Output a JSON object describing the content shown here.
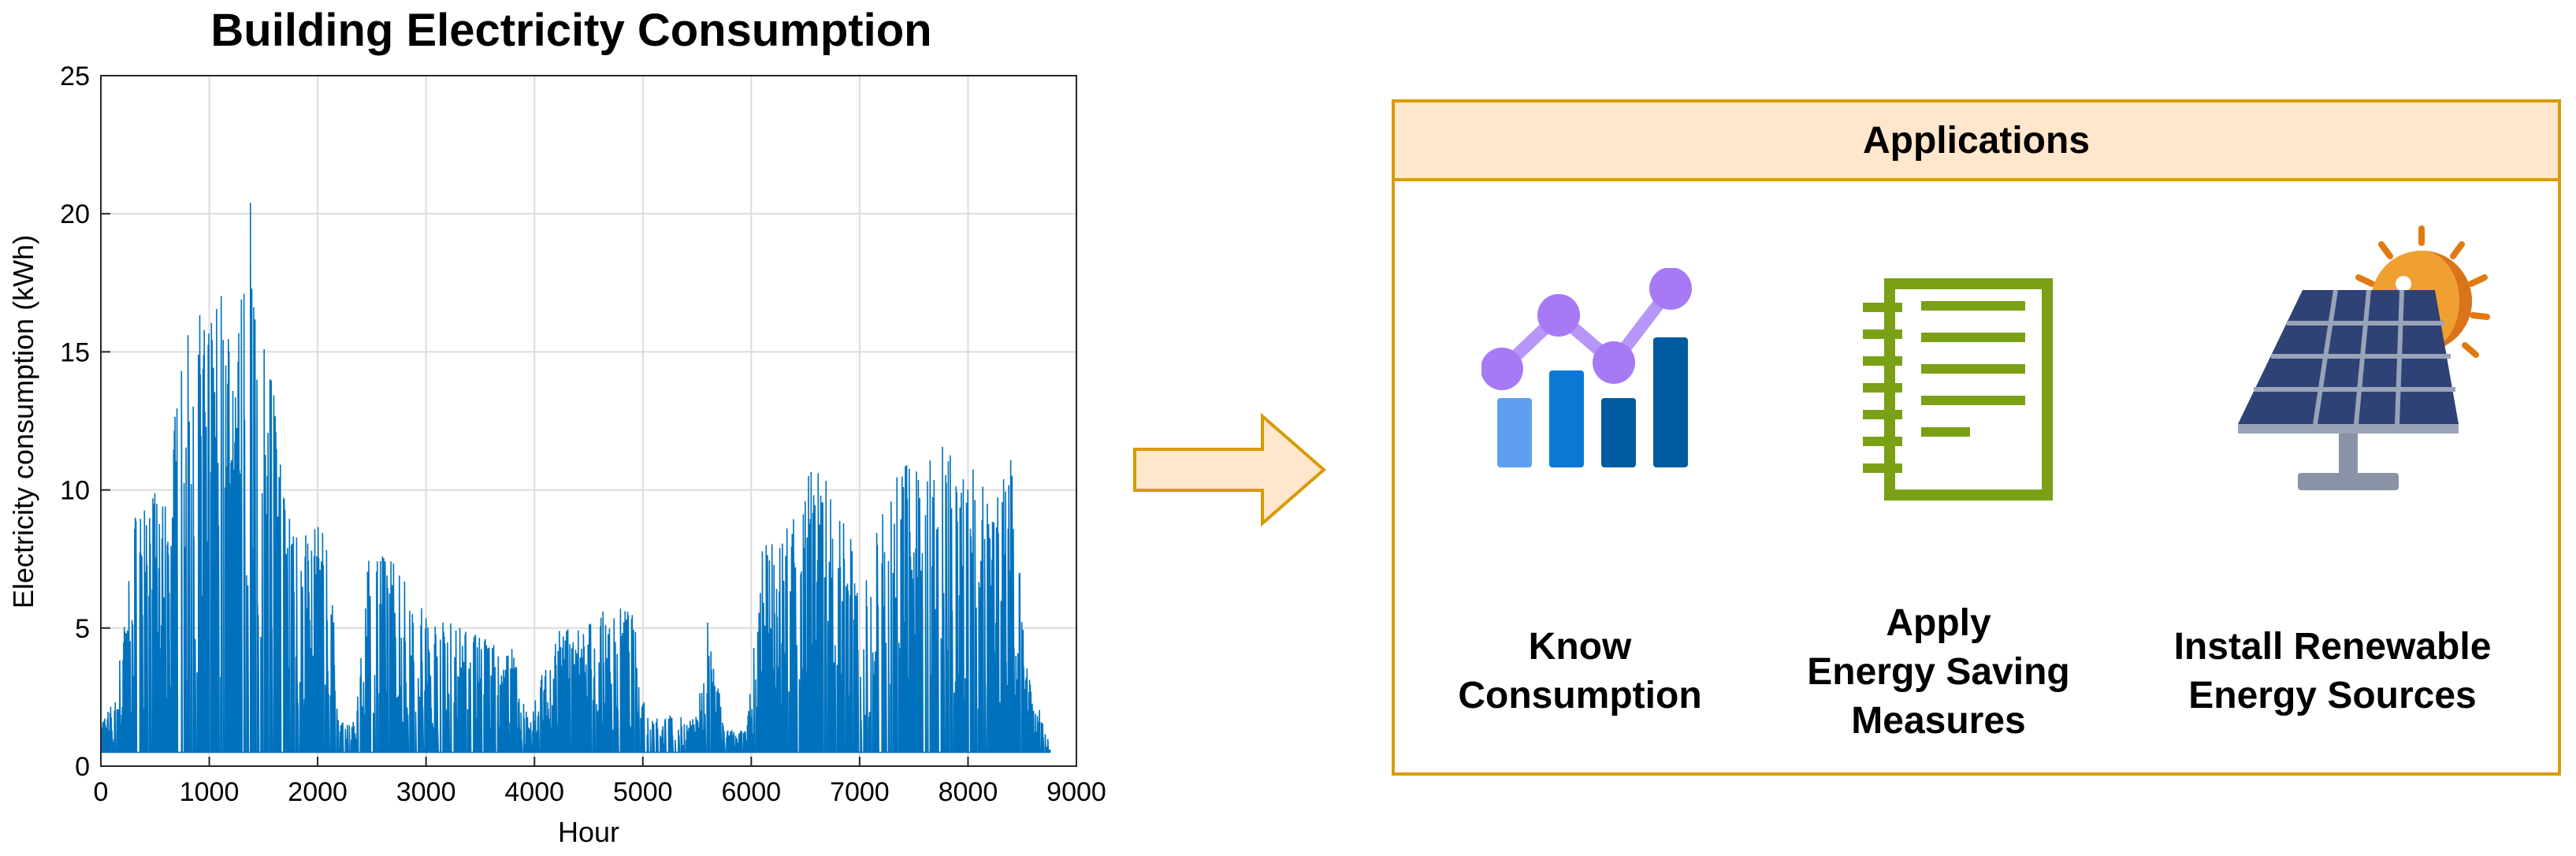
{
  "chart_data": {
    "type": "line",
    "title": "Building Electricity Consumption",
    "xlabel": "Hour",
    "ylabel": "Electricity consumption (kWh)",
    "xlim": [
      0,
      9000
    ],
    "ylim": [
      0,
      25
    ],
    "xticks": [
      "0",
      "1000",
      "2000",
      "3000",
      "4000",
      "5000",
      "6000",
      "7000",
      "8000",
      "9000"
    ],
    "yticks": [
      "0",
      "5",
      "10",
      "15",
      "20",
      "25"
    ],
    "grid": true,
    "color": "#0072bd",
    "baseline": 0.5,
    "x_range": [
      0,
      8760
    ],
    "peak": {
      "x": 1380,
      "y": 20.4
    },
    "envelope": [
      [
        0,
        1.8
      ],
      [
        150,
        2.5
      ],
      [
        200,
        5.5
      ],
      [
        300,
        8.2
      ],
      [
        350,
        11.7
      ],
      [
        450,
        10.3
      ],
      [
        600,
        9.6
      ],
      [
        700,
        13.5
      ],
      [
        780,
        15.6
      ],
      [
        900,
        16.5
      ],
      [
        1000,
        17.3
      ],
      [
        1050,
        18.0
      ],
      [
        1150,
        17.7
      ],
      [
        1250,
        15.5
      ],
      [
        1380,
        20.4
      ],
      [
        1450,
        15.9
      ],
      [
        1550,
        16.1
      ],
      [
        1700,
        10.0
      ],
      [
        1800,
        9.8
      ],
      [
        1950,
        8.8
      ],
      [
        2100,
        8.6
      ],
      [
        2200,
        1.6
      ],
      [
        2350,
        1.6
      ],
      [
        2450,
        8.0
      ],
      [
        2600,
        7.8
      ],
      [
        2750,
        7.5
      ],
      [
        2900,
        6.1
      ],
      [
        3100,
        5.3
      ],
      [
        3400,
        5.1
      ],
      [
        3600,
        4.8
      ],
      [
        3800,
        4.4
      ],
      [
        3950,
        1.6
      ],
      [
        4050,
        4.0
      ],
      [
        4300,
        5.3
      ],
      [
        4500,
        5.2
      ],
      [
        4700,
        5.8
      ],
      [
        4900,
        5.7
      ],
      [
        5050,
        1.9
      ],
      [
        5500,
        1.8
      ],
      [
        5600,
        5.7
      ],
      [
        5750,
        1.4
      ],
      [
        5950,
        1.3
      ],
      [
        6100,
        7.8
      ],
      [
        6250,
        8.8
      ],
      [
        6400,
        9.5
      ],
      [
        6550,
        11.2
      ],
      [
        6700,
        10.7
      ],
      [
        6850,
        9.8
      ],
      [
        7000,
        6.5
      ],
      [
        7150,
        8.5
      ],
      [
        7300,
        10.3
      ],
      [
        7450,
        11.3
      ],
      [
        7600,
        10.3
      ],
      [
        7750,
        12.8
      ],
      [
        7850,
        12.7
      ],
      [
        8000,
        11.7
      ],
      [
        8200,
        9.9
      ],
      [
        8300,
        10.1
      ],
      [
        8400,
        12.4
      ],
      [
        8500,
        5.5
      ],
      [
        8600,
        2.2
      ],
      [
        8700,
        2.0
      ],
      [
        8760,
        0.5
      ]
    ]
  },
  "applications": {
    "header": "Applications",
    "items": [
      {
        "lines": [
          "Know",
          "Consumption"
        ]
      },
      {
        "lines": [
          "Apply",
          "Energy Saving",
          "Measures"
        ]
      },
      {
        "lines": [
          "Install Renewable",
          "Energy Sources"
        ]
      }
    ]
  },
  "colors": {
    "box_border": "#d79b00",
    "box_fill": "#ffe6cc",
    "notebook": "#7aa116",
    "sun": "#e8a33d",
    "panel": "#2e4276"
  }
}
